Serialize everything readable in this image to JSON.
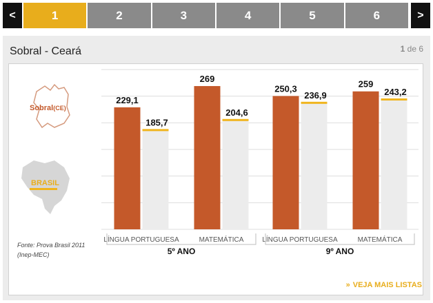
{
  "pager": {
    "prev": "<",
    "next": ">",
    "pages": [
      "1",
      "2",
      "3",
      "4",
      "5",
      "6"
    ],
    "active_index": 0,
    "active_color": "#e8ad1c"
  },
  "panel": {
    "title": "Sobral - Ceará",
    "count_current": "1",
    "count_of": "de 6",
    "more_chevron": "»",
    "more_link": "VEJA MAIS LISTAS"
  },
  "legend": {
    "sobral": "Sobral",
    "sobral_state": "(CE)",
    "brasil": "BRASIL"
  },
  "source": {
    "line1": "Fonte: Prova Brasil 2011",
    "line2": "(Inep-MEC)"
  },
  "chart_data": {
    "type": "bar",
    "groups": [
      {
        "label": "5º ANO",
        "categories": [
          "LÍNGUA PORTUGUESA",
          "MATEMÁTICA"
        ],
        "sobral": [
          229.1,
          269
        ],
        "brasil": [
          185.7,
          204.6
        ],
        "sobral_labels": [
          "229,1",
          "269"
        ],
        "brasil_labels": [
          "185,7",
          "204,6"
        ]
      },
      {
        "label": "9º ANO",
        "categories": [
          "LÍNGUA PORTUGUESA",
          "MATEMÁTICA"
        ],
        "sobral": [
          250.3,
          259
        ],
        "brasil": [
          236.9,
          243.2
        ],
        "sobral_labels": [
          "250,3",
          "259"
        ],
        "brasil_labels": [
          "236,9",
          "243,2"
        ]
      }
    ],
    "ylim": [
      0,
      300
    ],
    "grid": true,
    "colors": {
      "sobral": "#c4592a",
      "brasil_line": "#f0b41c",
      "brasil_fill": "#ececec",
      "grid": "#dddddd"
    }
  }
}
